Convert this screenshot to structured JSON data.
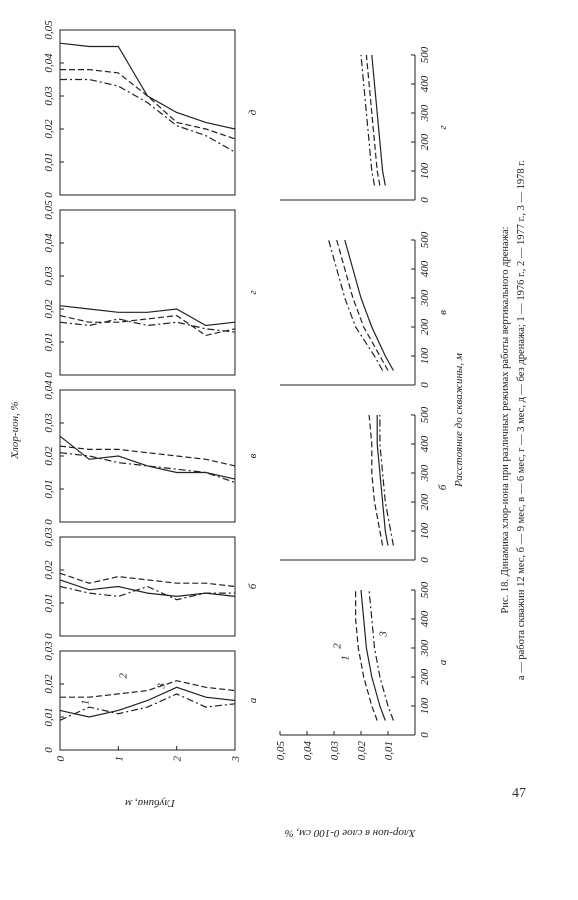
{
  "figure": {
    "value_axis_label": "Хлор-ион, %",
    "depth_axis_label": "Глубина, м",
    "distance_axis_label": "Расстояние до скважины, м",
    "bottom_value_axis_label": "Хлор-ион в слое 0-100 см, %",
    "series_names": [
      "1",
      "2",
      "3"
    ],
    "depths": [
      0,
      0.5,
      1,
      1.5,
      2,
      2.5,
      3
    ],
    "depth_lim": [
      0,
      3
    ],
    "depth_ticks": [
      0,
      1,
      2,
      3
    ],
    "top_panels": [
      {
        "letter": "а",
        "xlim": [
          0,
          0.03
        ],
        "xticks": [
          {
            "value": 0,
            "label": "0"
          },
          {
            "value": 0.01,
            "label": "0,01"
          },
          {
            "value": 0.02,
            "label": "0,02"
          },
          {
            "value": 0.03,
            "label": "0,03"
          }
        ],
        "series": [
          [
            0.012,
            0.01,
            0.012,
            0.015,
            0.019,
            0.016,
            0.015
          ],
          [
            0.016,
            0.016,
            0.017,
            0.018,
            0.021,
            0.019,
            0.018
          ],
          [
            0.009,
            0.013,
            0.011,
            0.013,
            0.017,
            0.013,
            0.014
          ]
        ]
      },
      {
        "letter": "б",
        "xlim": [
          0,
          0.03
        ],
        "xticks": [
          {
            "value": 0,
            "label": "0"
          },
          {
            "value": 0.01,
            "label": "0,01"
          },
          {
            "value": 0.02,
            "label": "0,02"
          },
          {
            "value": 0.03,
            "label": "0,03"
          }
        ],
        "series": [
          [
            0.017,
            0.014,
            0.015,
            0.013,
            0.012,
            0.013,
            0.012
          ],
          [
            0.019,
            0.016,
            0.018,
            0.017,
            0.016,
            0.016,
            0.015
          ],
          [
            0.015,
            0.013,
            0.012,
            0.015,
            0.011,
            0.013,
            0.013
          ]
        ]
      },
      {
        "letter": "в",
        "xlim": [
          0,
          0.04
        ],
        "xticks": [
          {
            "value": 0,
            "label": "0"
          },
          {
            "value": 0.01,
            "label": "0,01"
          },
          {
            "value": 0.02,
            "label": "0,02"
          },
          {
            "value": 0.03,
            "label": "0,03"
          },
          {
            "value": 0.04,
            "label": "0,04"
          }
        ],
        "series": [
          [
            0.026,
            0.019,
            0.02,
            0.017,
            0.015,
            0.015,
            0.013
          ],
          [
            0.023,
            0.022,
            0.022,
            0.021,
            0.02,
            0.019,
            0.017
          ],
          [
            0.021,
            0.02,
            0.018,
            0.017,
            0.016,
            0.015,
            0.012
          ]
        ]
      },
      {
        "letter": "г",
        "xlim": [
          0,
          0.05
        ],
        "xticks": [
          {
            "value": 0,
            "label": "0"
          },
          {
            "value": 0.01,
            "label": "0,01"
          },
          {
            "value": 0.02,
            "label": "0,02"
          },
          {
            "value": 0.03,
            "label": "0,03"
          },
          {
            "value": 0.04,
            "label": "0,04"
          },
          {
            "value": 0.05,
            "label": "0,05"
          }
        ],
        "series": [
          [
            0.021,
            0.02,
            0.019,
            0.019,
            0.02,
            0.015,
            0.016
          ],
          [
            0.018,
            0.016,
            0.016,
            0.017,
            0.018,
            0.012,
            0.014
          ],
          [
            0.016,
            0.015,
            0.017,
            0.015,
            0.016,
            0.014,
            0.013
          ]
        ]
      },
      {
        "letter": "д",
        "xlim": [
          0,
          0.05
        ],
        "xticks": [
          {
            "value": 0,
            "label": "0"
          },
          {
            "value": 0.01,
            "label": "0,01"
          },
          {
            "value": 0.02,
            "label": "0,02"
          },
          {
            "value": 0.03,
            "label": "0,03"
          },
          {
            "value": 0.04,
            "label": "0,04"
          },
          {
            "value": 0.05,
            "label": "0,05"
          }
        ],
        "series": [
          [
            0.046,
            0.045,
            0.045,
            0.03,
            0.025,
            0.022,
            0.02
          ],
          [
            0.038,
            0.038,
            0.037,
            0.03,
            0.022,
            0.02,
            0.017
          ],
          [
            0.035,
            0.035,
            0.033,
            0.028,
            0.021,
            0.018,
            0.013
          ]
        ]
      }
    ],
    "distances": [
      50,
      100,
      200,
      300,
      400,
      500
    ],
    "distance_lim": [
      0,
      500
    ],
    "distance_ticks": [
      0,
      100,
      200,
      300,
      400,
      500
    ],
    "bottom_ylim": [
      0,
      0.05
    ],
    "bottom_yticks": [
      {
        "value": 0.01,
        "label": "0,01"
      },
      {
        "value": 0.02,
        "label": "0,02"
      },
      {
        "value": 0.03,
        "label": "0,03"
      },
      {
        "value": 0.04,
        "label": "0,04"
      },
      {
        "value": 0.05,
        "label": "0,05"
      }
    ],
    "bottom_panels": [
      {
        "letter": "а",
        "series": [
          [
            0.011,
            0.013,
            0.016,
            0.018,
            0.019,
            0.02
          ],
          [
            0.014,
            0.016,
            0.019,
            0.021,
            0.022,
            0.022
          ],
          [
            0.008,
            0.01,
            0.013,
            0.015,
            0.016,
            0.017
          ]
        ]
      },
      {
        "letter": "б",
        "series": [
          [
            0.01,
            0.011,
            0.012,
            0.013,
            0.014,
            0.014
          ],
          [
            0.012,
            0.013,
            0.015,
            0.016,
            0.016,
            0.017
          ],
          [
            0.008,
            0.009,
            0.011,
            0.012,
            0.013,
            0.013
          ]
        ]
      },
      {
        "letter": "в",
        "series": [
          [
            0.008,
            0.011,
            0.016,
            0.02,
            0.023,
            0.026
          ],
          [
            0.01,
            0.013,
            0.019,
            0.023,
            0.026,
            0.029
          ],
          [
            0.012,
            0.015,
            0.022,
            0.026,
            0.029,
            0.032
          ]
        ]
      },
      {
        "letter": "г",
        "series": [
          [
            0.011,
            0.012,
            0.013,
            0.014,
            0.015,
            0.016
          ],
          [
            0.013,
            0.014,
            0.015,
            0.016,
            0.017,
            0.018
          ],
          [
            0.015,
            0.016,
            0.017,
            0.018,
            0.019,
            0.02
          ]
        ]
      }
    ]
  },
  "caption": {
    "title": "Рис. 18. Динамика хлор-иона при различных режимах работы вертикального дренажа:",
    "text": "а — работа скважин 12 мес, б — 9 мес, в — 6 мес, г — 3 мес, д — без дренажа; 1 — 1976 г., 2 — 1977 г., 3 — 1978 г."
  },
  "page_number": "47"
}
